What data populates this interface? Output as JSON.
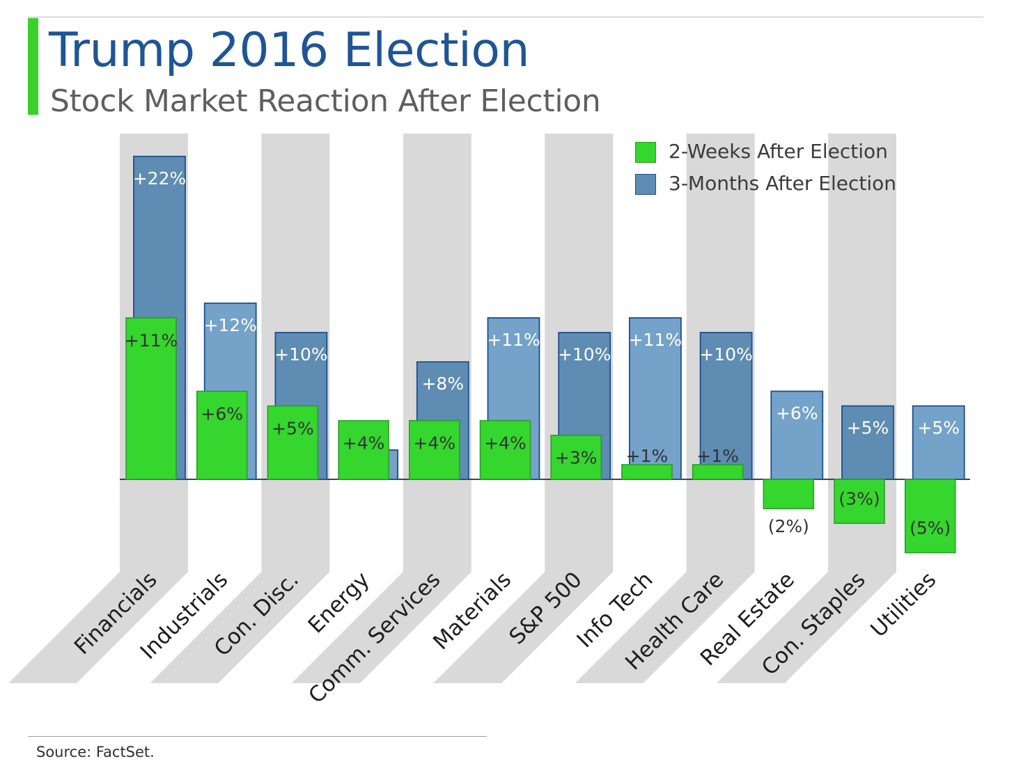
{
  "header": {
    "title": "Trump 2016 Election",
    "subtitle": "Stock Market Reaction After Election"
  },
  "footer": {
    "source": "Source: FactSet."
  },
  "colors": {
    "title": "#1f5595",
    "accent": "#3ad12c",
    "two_weeks_fill": "#35d62e",
    "two_weeks_stroke": "#2b9a26",
    "three_months_dark": "#5e8cb3",
    "three_months_light": "#74a2c9",
    "three_months_stroke": "#1a4f8e",
    "category_band": "#d9d9d9"
  },
  "legend": {
    "position": "top-right",
    "items": [
      {
        "label": "2-Weeks After Election",
        "color": "#35d62e"
      },
      {
        "label": "3-Months After Election",
        "color": "#5e8cb3"
      }
    ]
  },
  "chart_data": {
    "type": "bar",
    "categories": [
      "Financials",
      "Industrials",
      "Con. Disc.",
      "Energy",
      "Comm. Services",
      "Materials",
      "S&P 500",
      "Info Tech",
      "Health Care",
      "Real Estate",
      "Con. Staples",
      "Utilities"
    ],
    "series": [
      {
        "name": "2-Weeks After Election",
        "values": [
          11,
          6,
          5,
          4,
          4,
          4,
          3,
          1,
          1,
          -2,
          -3,
          -5
        ],
        "labels": [
          "+11%",
          "+6%",
          "+5%",
          "+4%",
          "+4%",
          "+4%",
          "+3%",
          "+1%",
          "+1%",
          "(2%)",
          "(3%)",
          "(5%)"
        ]
      },
      {
        "name": "3-Months After Election",
        "values": [
          22,
          12,
          10,
          2,
          8,
          11,
          10,
          11,
          10,
          6,
          5,
          5
        ],
        "labels": [
          "+22%",
          "+12%",
          "+10%",
          "",
          "+8%",
          "+11%",
          "+10%",
          "+11%",
          "+10%",
          "+6%",
          "+5%",
          "+5%"
        ]
      }
    ],
    "ylim": [
      -5,
      22
    ],
    "grid": false,
    "legend": "top-right"
  }
}
